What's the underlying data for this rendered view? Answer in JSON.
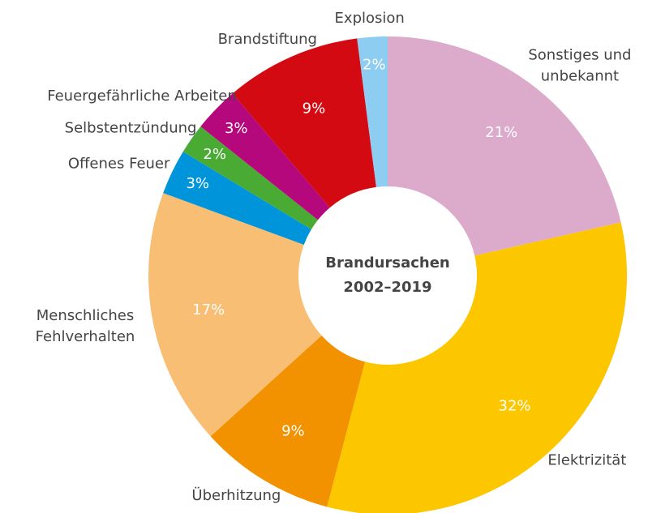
{
  "chart_data": {
    "type": "donut",
    "title": "Brandursachen 2002–2019",
    "categories": [
      "Sonstiges und unbekannt",
      "Elektrizität",
      "Überhitzung",
      "Menschliches Fehlverhalten",
      "Offenes Feuer",
      "Selbstentzündung",
      "Feuergefährliche Arbeiten",
      "Brandstiftung",
      "Explosion"
    ],
    "values": [
      21,
      32,
      9,
      17,
      3,
      2,
      3,
      9,
      2
    ],
    "value_labels": [
      "21%",
      "32%",
      "9%",
      "17%",
      "3%",
      "2%",
      "3%",
      "9%",
      "2%"
    ],
    "colors": [
      "#dcaacb",
      "#fdc700",
      "#f39200",
      "#f8bf74",
      "#0095db",
      "#4aab34",
      "#b5087d",
      "#d40a12",
      "#8dcdf2"
    ]
  }
}
